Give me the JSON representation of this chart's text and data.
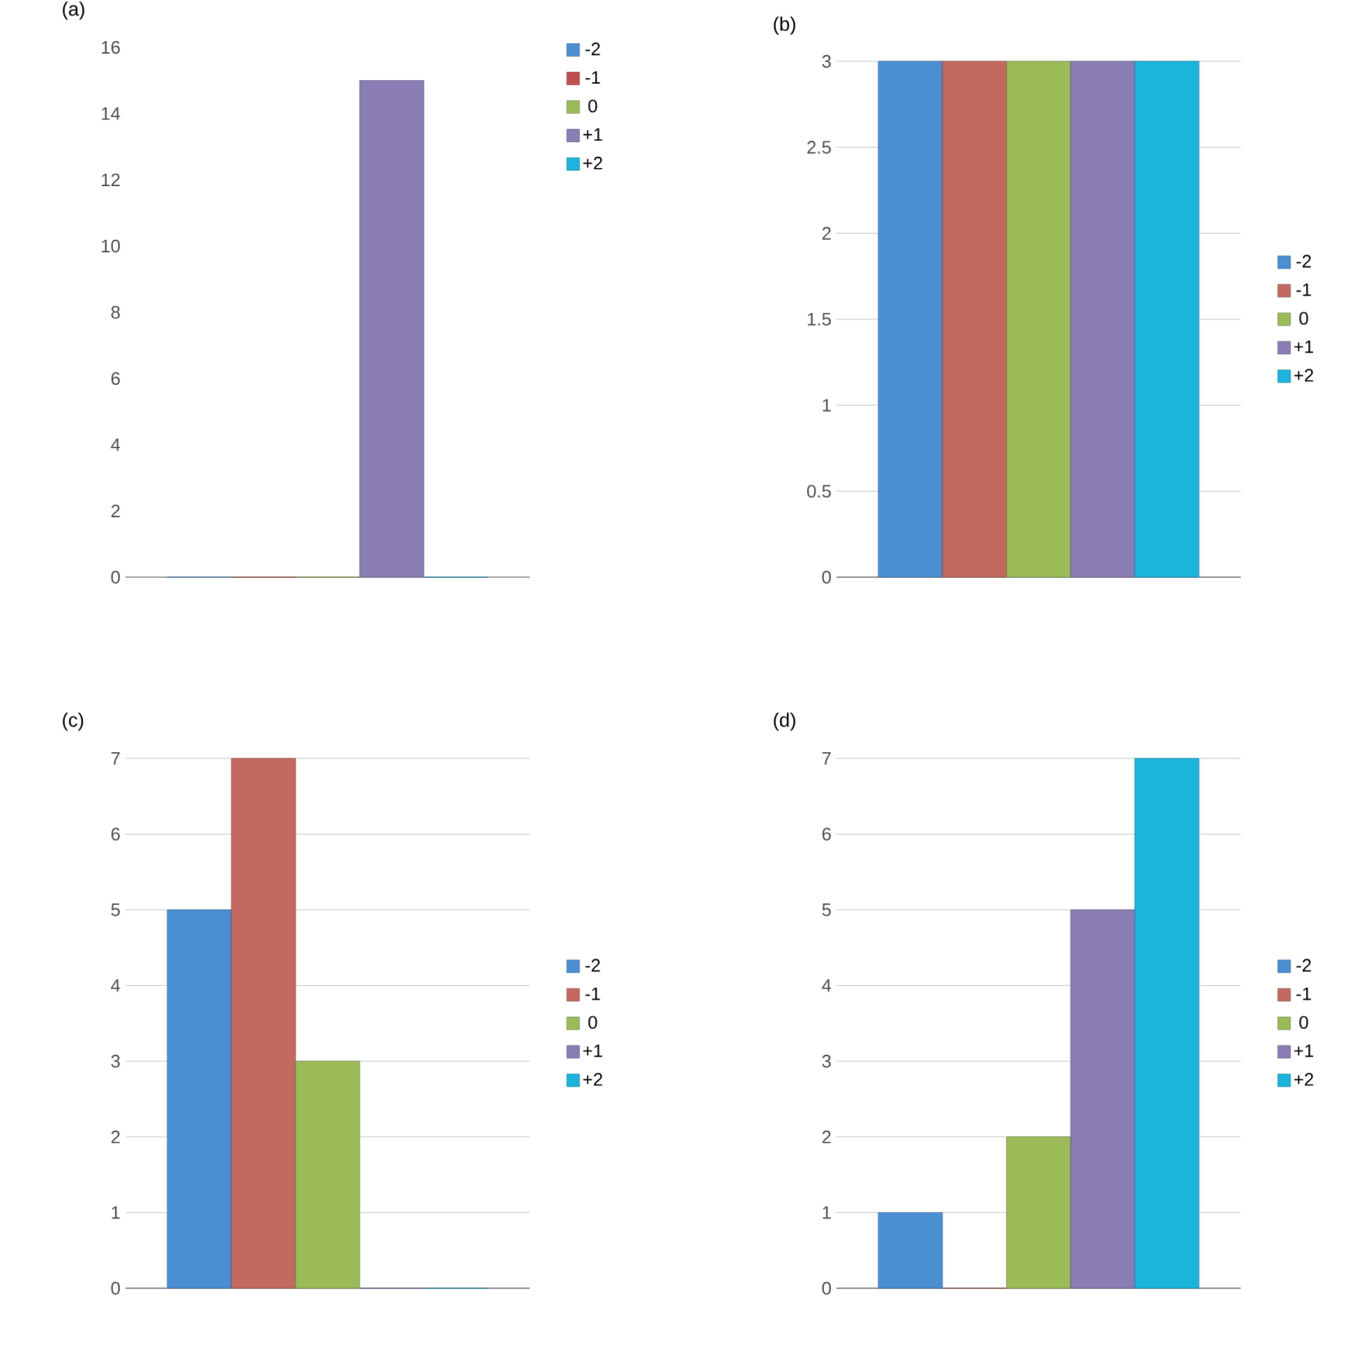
{
  "chart_data": [
    {
      "type": "bar",
      "title": "(a)",
      "categories": [
        null
      ],
      "ylim": [
        0,
        16
      ],
      "yticks": [
        0,
        2,
        4,
        6,
        8,
        10,
        12,
        14,
        16
      ],
      "grid": false,
      "legend": "top right",
      "series": [
        {
          "name": "-2",
          "color": "#4a8fd2",
          "values": [
            0
          ]
        },
        {
          "name": "-1",
          "color": "#c0504d",
          "values": [
            0
          ]
        },
        {
          "name": "0",
          "color": "#9bbb59",
          "values": [
            0
          ]
        },
        {
          "name": "+1",
          "color": "#8a7db5",
          "values": [
            15
          ]
        },
        {
          "name": "+2",
          "color": "#1ab4dc",
          "values": [
            0
          ]
        }
      ]
    },
    {
      "type": "bar",
      "title": "(b)",
      "categories": [
        null
      ],
      "ylim": [
        0,
        3
      ],
      "yticks": [
        0,
        0.5,
        1,
        1.5,
        2,
        2.5,
        3
      ],
      "grid": "y",
      "legend": "right",
      "series": [
        {
          "name": "-2",
          "color": "#4a8fd2",
          "values": [
            3
          ]
        },
        {
          "name": "-1",
          "color": "#c4695f",
          "values": [
            3
          ]
        },
        {
          "name": "0",
          "color": "#9bbb59",
          "values": [
            3
          ]
        },
        {
          "name": "+1",
          "color": "#8a7db5",
          "values": [
            3
          ]
        },
        {
          "name": "+2",
          "color": "#1ab4dc",
          "values": [
            3
          ]
        }
      ]
    },
    {
      "type": "bar",
      "title": "(c)",
      "categories": [
        null
      ],
      "ylim": [
        0,
        7
      ],
      "yticks": [
        0,
        1,
        2,
        3,
        4,
        5,
        6,
        7
      ],
      "grid": "y",
      "legend": "right",
      "series": [
        {
          "name": "-2",
          "color": "#4a8fd2",
          "values": [
            5
          ]
        },
        {
          "name": "-1",
          "color": "#c4695f",
          "values": [
            7
          ]
        },
        {
          "name": "0",
          "color": "#9bbb59",
          "values": [
            3
          ]
        },
        {
          "name": "+1",
          "color": "#8a7db5",
          "values": [
            0
          ]
        },
        {
          "name": "+2",
          "color": "#1ab4dc",
          "values": [
            0
          ]
        }
      ]
    },
    {
      "type": "bar",
      "title": "(d)",
      "categories": [
        null
      ],
      "ylim": [
        0,
        7
      ],
      "yticks": [
        0,
        1,
        2,
        3,
        4,
        5,
        6,
        7
      ],
      "grid": "y",
      "legend": "right",
      "series": [
        {
          "name": "-2",
          "color": "#4a8fd2",
          "values": [
            1
          ]
        },
        {
          "name": "-1",
          "color": "#c4695f",
          "values": [
            0
          ]
        },
        {
          "name": "0",
          "color": "#9bbb59",
          "values": [
            2
          ]
        },
        {
          "name": "+1",
          "color": "#8a7db5",
          "values": [
            5
          ]
        },
        {
          "name": "+2",
          "color": "#1ab4dc",
          "values": [
            7
          ]
        }
      ]
    }
  ]
}
